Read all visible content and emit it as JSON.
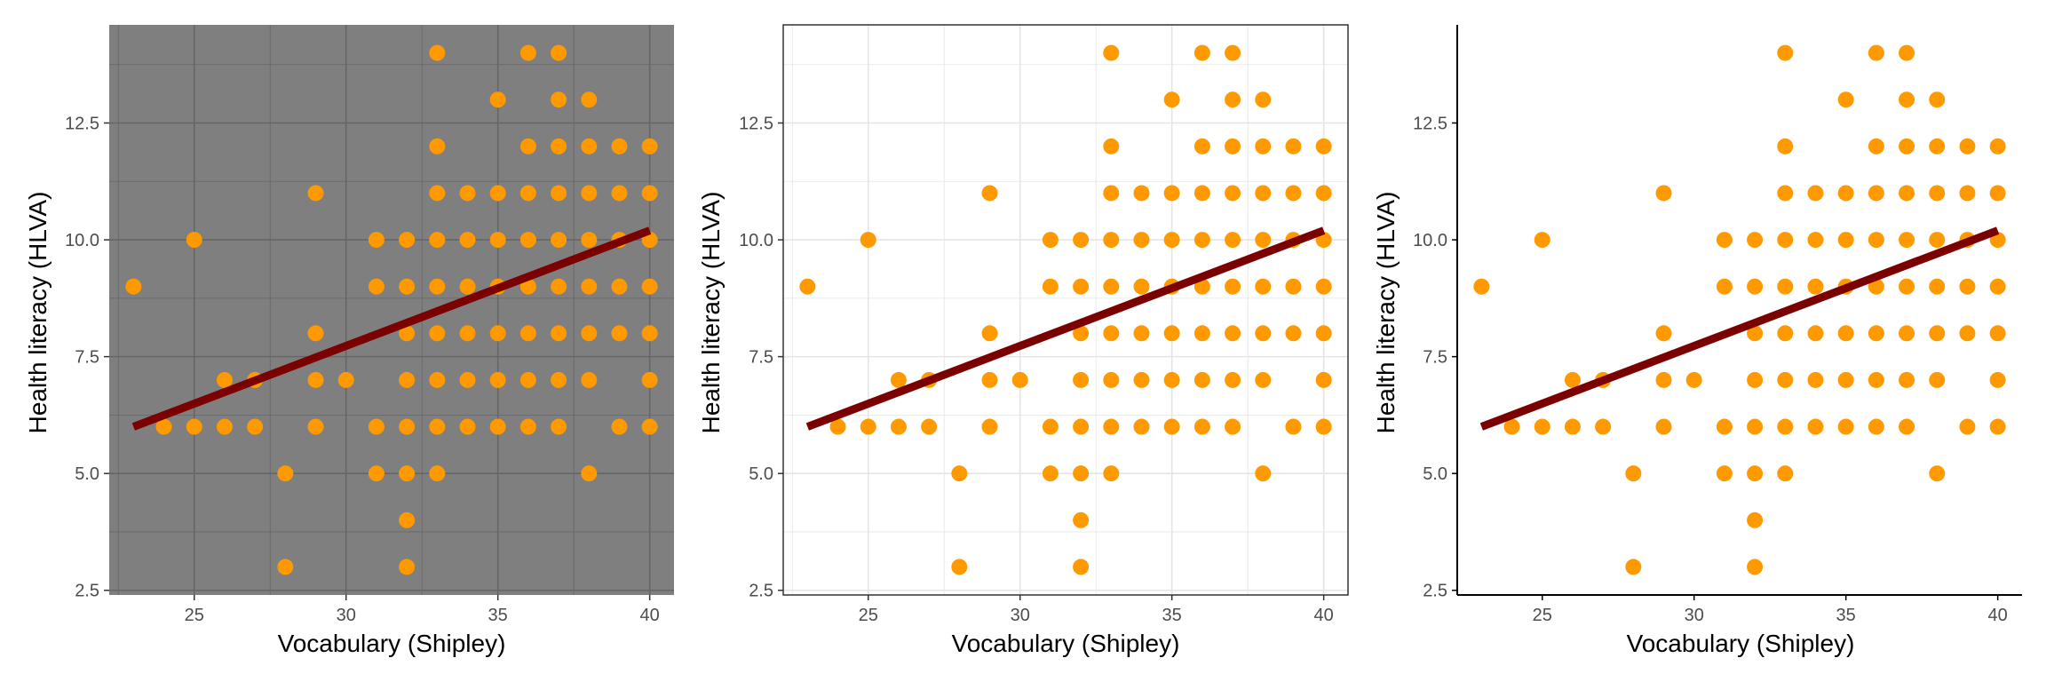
{
  "chart_data": [
    {
      "type": "scatter",
      "theme": "dark",
      "xlabel": "Vocabulary (Shipley)",
      "ylabel": "Health literacy (HLVA)",
      "xlim": [
        22.2,
        40.8
      ],
      "ylim": [
        2.4,
        14.6
      ],
      "x_ticks": [
        "25",
        "30",
        "35",
        "40"
      ],
      "y_ticks": [
        "2.5",
        "5.0",
        "7.5",
        "10.0",
        "12.5"
      ],
      "grid": true,
      "trend_line": {
        "x": [
          23,
          40
        ],
        "y": [
          6.0,
          10.2
        ]
      }
    },
    {
      "type": "scatter",
      "theme": "light",
      "xlabel": "Vocabulary (Shipley)",
      "ylabel": "Health literacy (HLVA)",
      "xlim": [
        22.2,
        40.8
      ],
      "ylim": [
        2.4,
        14.6
      ],
      "x_ticks": [
        "25",
        "30",
        "35",
        "40"
      ],
      "y_ticks": [
        "2.5",
        "5.0",
        "7.5",
        "10.0",
        "12.5"
      ],
      "grid": true,
      "trend_line": {
        "x": [
          23,
          40
        ],
        "y": [
          6.0,
          10.2
        ]
      }
    },
    {
      "type": "scatter",
      "theme": "classic",
      "xlabel": "Vocabulary (Shipley)",
      "ylabel": "Health literacy (HLVA)",
      "xlim": [
        22.2,
        40.8
      ],
      "ylim": [
        2.4,
        14.6
      ],
      "x_ticks": [
        "25",
        "30",
        "35",
        "40"
      ],
      "y_ticks": [
        "2.5",
        "5.0",
        "7.5",
        "10.0",
        "12.5"
      ],
      "grid": false,
      "trend_line": {
        "x": [
          23,
          40
        ],
        "y": [
          6.0,
          10.2
        ]
      }
    }
  ],
  "points": [
    [
      23,
      9
    ],
    [
      24,
      6
    ],
    [
      25,
      10
    ],
    [
      25,
      6
    ],
    [
      26,
      7
    ],
    [
      26,
      6
    ],
    [
      27,
      7
    ],
    [
      27,
      6
    ],
    [
      28,
      5
    ],
    [
      28,
      3
    ],
    [
      29,
      11
    ],
    [
      29,
      8
    ],
    [
      29,
      7
    ],
    [
      29,
      6
    ],
    [
      30,
      7
    ],
    [
      31,
      10
    ],
    [
      31,
      9
    ],
    [
      31,
      6
    ],
    [
      31,
      5
    ],
    [
      32,
      10
    ],
    [
      32,
      9
    ],
    [
      32,
      8
    ],
    [
      32,
      7
    ],
    [
      32,
      6
    ],
    [
      32,
      5
    ],
    [
      32,
      4
    ],
    [
      32,
      3
    ],
    [
      33,
      14
    ],
    [
      33,
      12
    ],
    [
      33,
      11
    ],
    [
      33,
      10
    ],
    [
      33,
      9
    ],
    [
      33,
      8
    ],
    [
      33,
      7
    ],
    [
      33,
      6
    ],
    [
      33,
      5
    ],
    [
      34,
      11
    ],
    [
      34,
      10
    ],
    [
      34,
      9
    ],
    [
      34,
      8
    ],
    [
      34,
      7
    ],
    [
      34,
      6
    ],
    [
      35,
      13
    ],
    [
      35,
      11
    ],
    [
      35,
      10
    ],
    [
      35,
      9
    ],
    [
      35,
      8
    ],
    [
      35,
      7
    ],
    [
      35,
      6
    ],
    [
      36,
      14
    ],
    [
      36,
      12
    ],
    [
      36,
      11
    ],
    [
      36,
      10
    ],
    [
      36,
      9
    ],
    [
      36,
      8
    ],
    [
      36,
      7
    ],
    [
      36,
      6
    ],
    [
      37,
      14
    ],
    [
      37,
      13
    ],
    [
      37,
      12
    ],
    [
      37,
      11
    ],
    [
      37,
      10
    ],
    [
      37,
      9
    ],
    [
      37,
      8
    ],
    [
      37,
      7
    ],
    [
      37,
      6
    ],
    [
      38,
      13
    ],
    [
      38,
      12
    ],
    [
      38,
      11
    ],
    [
      38,
      10
    ],
    [
      38,
      9
    ],
    [
      38,
      8
    ],
    [
      38,
      7
    ],
    [
      38,
      5
    ],
    [
      39,
      12
    ],
    [
      39,
      11
    ],
    [
      39,
      10
    ],
    [
      39,
      9
    ],
    [
      39,
      8
    ],
    [
      39,
      6
    ],
    [
      40,
      12
    ],
    [
      40,
      11
    ],
    [
      40,
      10
    ],
    [
      40,
      9
    ],
    [
      40,
      8
    ],
    [
      40,
      7
    ],
    [
      40,
      6
    ]
  ],
  "colors": {
    "point": "#ff9900",
    "trend_line": "#7b0000",
    "dark_panel_bg": "#7f7f7f",
    "dark_grid": "#666666",
    "light_grid": "#e5e5e5",
    "axis": "#000000",
    "tick_text": "#4d4d4d"
  }
}
